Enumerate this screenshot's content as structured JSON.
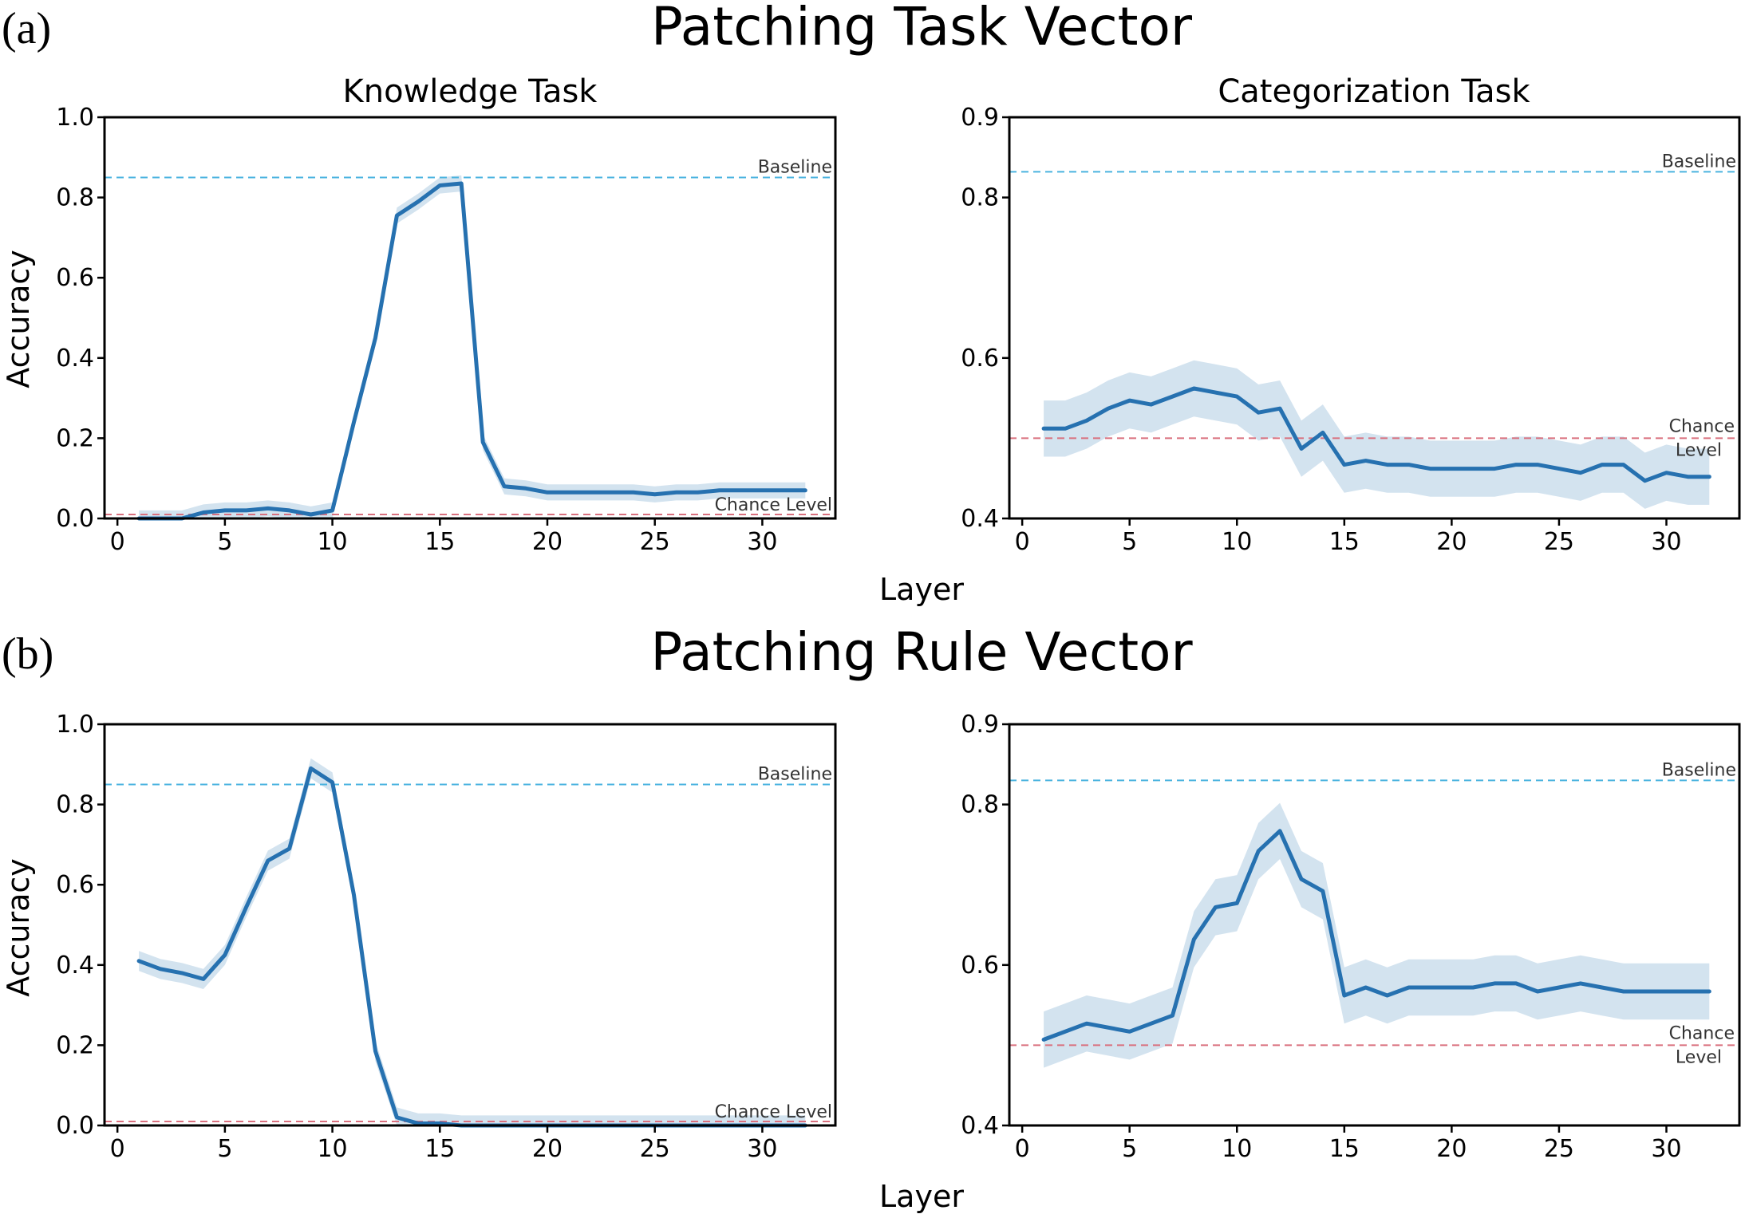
{
  "figure": {
    "panels": [
      {
        "letter": "(a)",
        "title": "Patching Task Vector"
      },
      {
        "letter": "(b)",
        "title": "Patching Rule Vector"
      }
    ],
    "shared_xlabel": "Layer",
    "colors": {
      "line": "#2671b0",
      "band": "#d3e3ef",
      "baseline": "#4ab3df",
      "chance": "#d9707e"
    }
  },
  "chart_data": [
    {
      "id": "a-knowledge",
      "type": "line",
      "title": "Knowledge Task",
      "xlabel": "",
      "ylabel": "Accuracy",
      "xlim": [
        -0.6,
        33.4
      ],
      "ylim": [
        0.0,
        1.0
      ],
      "xticks": [
        0,
        5,
        10,
        15,
        20,
        25,
        30
      ],
      "yticks": [
        "0.0",
        "0.2",
        "0.4",
        "0.6",
        "0.8",
        "1.0"
      ],
      "baseline": {
        "label": "Baseline",
        "value": 0.85
      },
      "chance": {
        "label": "Chance Level",
        "value": 0.01
      },
      "x": [
        1,
        2,
        3,
        4,
        5,
        6,
        7,
        8,
        9,
        10,
        11,
        12,
        13,
        14,
        15,
        16,
        17,
        18,
        19,
        20,
        21,
        22,
        23,
        24,
        25,
        26,
        27,
        28,
        29,
        30,
        31,
        32
      ],
      "values": [
        0.0,
        0.0,
        0.0,
        0.015,
        0.02,
        0.02,
        0.025,
        0.02,
        0.01,
        0.02,
        0.24,
        0.45,
        0.755,
        0.79,
        0.83,
        0.835,
        0.19,
        0.08,
        0.075,
        0.065,
        0.065,
        0.065,
        0.065,
        0.065,
        0.06,
        0.065,
        0.065,
        0.07,
        0.07,
        0.07,
        0.07,
        0.07
      ],
      "band": 0.02
    },
    {
      "id": "a-categorization",
      "type": "line",
      "title": "Categorization Task",
      "xlabel": "",
      "ylabel": "",
      "xlim": [
        -0.6,
        33.4
      ],
      "ylim": [
        0.4,
        0.9
      ],
      "xticks": [
        0,
        5,
        10,
        15,
        20,
        25,
        30
      ],
      "yticks": [
        "0.4",
        "0.6",
        "0.8",
        "0.9"
      ],
      "baseline": {
        "label": "Baseline",
        "value": 0.832
      },
      "chance": {
        "label": "Chance Level",
        "value": 0.5
      },
      "x": [
        1,
        2,
        3,
        4,
        5,
        6,
        7,
        8,
        9,
        10,
        11,
        12,
        13,
        14,
        15,
        16,
        17,
        18,
        19,
        20,
        21,
        22,
        23,
        24,
        25,
        26,
        27,
        28,
        29,
        30,
        31,
        32
      ],
      "values": [
        0.512,
        0.512,
        0.522,
        0.537,
        0.547,
        0.542,
        0.552,
        0.562,
        0.557,
        0.552,
        0.532,
        0.537,
        0.487,
        0.507,
        0.467,
        0.472,
        0.467,
        0.467,
        0.462,
        0.462,
        0.462,
        0.462,
        0.467,
        0.467,
        0.462,
        0.457,
        0.467,
        0.467,
        0.447,
        0.457,
        0.452,
        0.452
      ],
      "band": 0.035
    },
    {
      "id": "b-knowledge",
      "type": "line",
      "title": "",
      "xlabel": "",
      "ylabel": "Accuracy",
      "xlim": [
        -0.6,
        33.4
      ],
      "ylim": [
        0.0,
        1.0
      ],
      "xticks": [
        0,
        5,
        10,
        15,
        20,
        25,
        30
      ],
      "yticks": [
        "0.0",
        "0.2",
        "0.4",
        "0.6",
        "0.8",
        "1.0"
      ],
      "baseline": {
        "label": "Baseline",
        "value": 0.85
      },
      "chance": {
        "label": "Chance Level",
        "value": 0.01
      },
      "x": [
        1,
        2,
        3,
        4,
        5,
        6,
        7,
        8,
        9,
        10,
        11,
        12,
        13,
        14,
        15,
        16,
        17,
        18,
        19,
        20,
        21,
        22,
        23,
        24,
        25,
        26,
        27,
        28,
        29,
        30,
        31,
        32
      ],
      "values": [
        0.41,
        0.39,
        0.38,
        0.365,
        0.425,
        0.545,
        0.66,
        0.69,
        0.89,
        0.855,
        0.575,
        0.185,
        0.02,
        0.005,
        0.005,
        0.0,
        0.0,
        0.0,
        0.0,
        0.0,
        0.0,
        0.0,
        0.0,
        0.0,
        0.0,
        0.0,
        0.0,
        0.0,
        0.0,
        0.0,
        0.0,
        0.0
      ],
      "band": 0.025
    },
    {
      "id": "b-categorization",
      "type": "line",
      "title": "",
      "xlabel": "",
      "ylabel": "",
      "xlim": [
        -0.6,
        33.4
      ],
      "ylim": [
        0.4,
        0.9
      ],
      "xticks": [
        0,
        5,
        10,
        15,
        20,
        25,
        30
      ],
      "yticks": [
        "0.4",
        "0.6",
        "0.8",
        "0.9"
      ],
      "baseline": {
        "label": "Baseline",
        "value": 0.83
      },
      "chance": {
        "label": "Chance Level",
        "value": 0.5
      },
      "x": [
        1,
        3,
        5,
        7,
        8,
        9,
        10,
        11,
        12,
        13,
        14,
        15,
        16,
        17,
        18,
        19,
        20,
        21,
        22,
        23,
        24,
        25,
        26,
        27,
        28,
        29,
        30,
        31,
        32
      ],
      "values": [
        0.507,
        0.527,
        0.517,
        0.537,
        0.632,
        0.672,
        0.677,
        0.742,
        0.767,
        0.707,
        0.692,
        0.562,
        0.572,
        0.562,
        0.572,
        0.572,
        0.572,
        0.572,
        0.577,
        0.577,
        0.567,
        0.572,
        0.577,
        0.572,
        0.567,
        0.567,
        0.567,
        0.567,
        0.567
      ],
      "band": 0.035
    }
  ]
}
